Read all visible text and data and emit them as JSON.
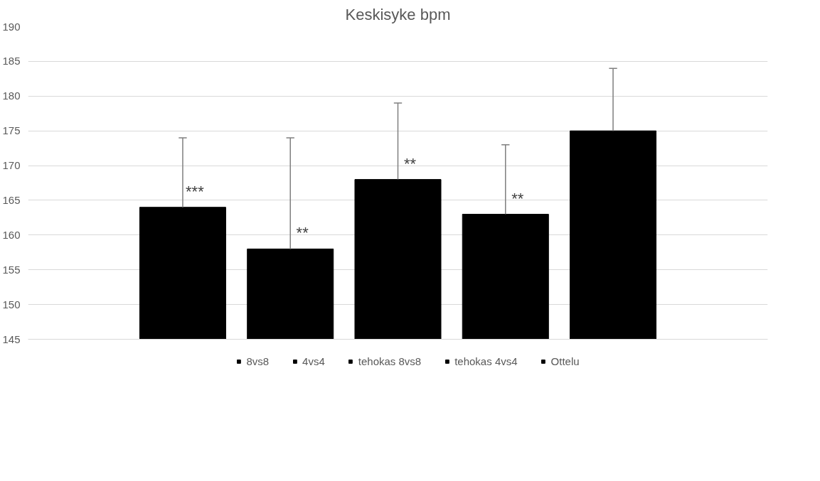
{
  "chart_data": {
    "type": "bar",
    "title": "Keskisyke bpm",
    "categories": [
      null
    ],
    "series": [
      {
        "name": "8vs8",
        "color": "#000000",
        "values": [
          164
        ],
        "errors": [
          [
            164,
            174
          ]
        ]
      },
      {
        "name": "4vs4",
        "color": "#000000",
        "values": [
          158
        ],
        "errors": [
          [
            158,
            174
          ]
        ]
      },
      {
        "name": "tehokas 8vs8",
        "color": "#000000",
        "values": [
          168
        ],
        "errors": [
          [
            168,
            179
          ]
        ]
      },
      {
        "name": "tehokas 4vs4",
        "color": "#000000",
        "values": [
          163
        ],
        "errors": [
          [
            163,
            173
          ]
        ]
      },
      {
        "name": "Ottelu",
        "color": "#000000",
        "values": [
          175
        ],
        "errors": [
          [
            175,
            184
          ]
        ]
      }
    ],
    "annotations": [
      "***",
      "**",
      "**",
      "**"
    ],
    "ylim": [
      145,
      190
    ],
    "yticks": [
      145,
      150,
      155,
      160,
      165,
      170,
      175,
      180,
      185,
      190
    ],
    "grid": "y",
    "legend": "bottom",
    "tick_labels": "y"
  }
}
